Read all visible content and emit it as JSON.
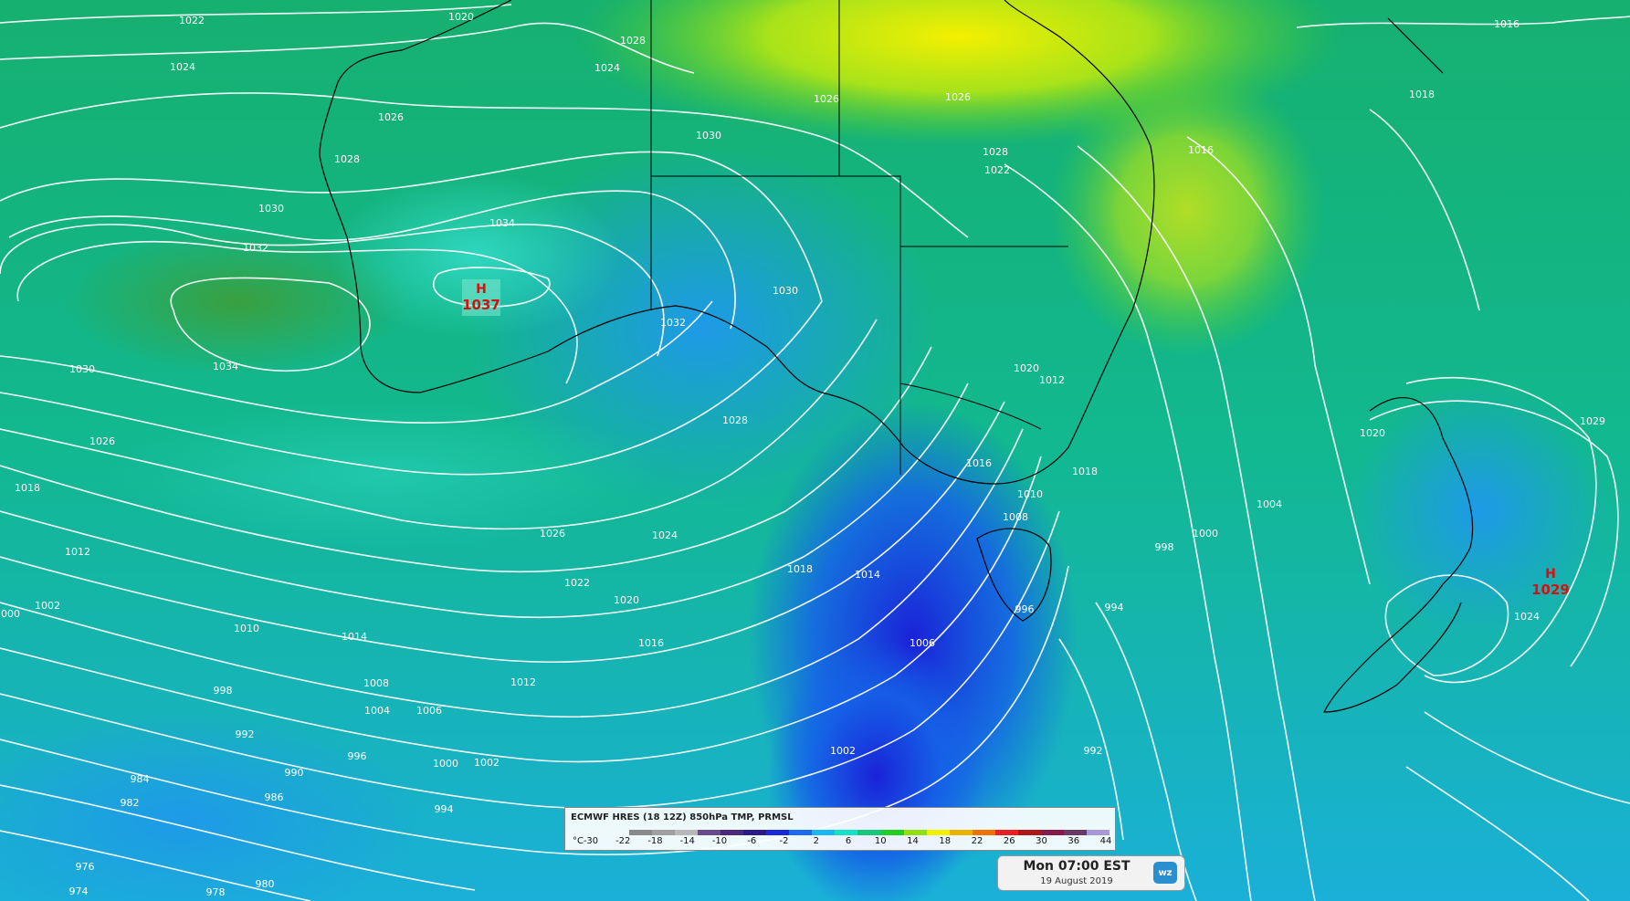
{
  "highs": [
    {
      "label": "H",
      "value": "1037"
    },
    {
      "label": "H",
      "value": "1029"
    }
  ],
  "isobar_labels": [
    "1022",
    "1024",
    "1026",
    "1028",
    "1030",
    "1032",
    "1034",
    "1030",
    "1026",
    "1018",
    "1012",
    "1002",
    "1000",
    "1020",
    "1024",
    "1026",
    "1028",
    "1030",
    "1034",
    "1032",
    "1030",
    "1028",
    "1026",
    "1024",
    "1022",
    "1020",
    "1018",
    "1016",
    "1014",
    "1012",
    "1010",
    "1008",
    "1006",
    "1004",
    "1002",
    "1000",
    "998",
    "996",
    "994",
    "992",
    "990",
    "986",
    "984",
    "982",
    "980",
    "978",
    "976",
    "974",
    "1016",
    "1018",
    "1016",
    "1014",
    "1012",
    "1010",
    "1008",
    "1006",
    "1004",
    "1002",
    "1000",
    "998",
    "996",
    "994",
    "992",
    "1018",
    "1016",
    "1020",
    "1020",
    "1022",
    "1024",
    "1026",
    "1028",
    "1029"
  ],
  "legend": {
    "title": "ECMWF HRES (18 12Z) 850hPa TMP, PRMSL",
    "unit": "°C",
    "ticks": [
      "-30",
      "-22",
      "-18",
      "-14",
      "-10",
      "-6",
      "-2",
      "2",
      "6",
      "10",
      "14",
      "18",
      "22",
      "26",
      "30",
      "36",
      "44"
    ],
    "colors": [
      "#8a8a8a",
      "#a0a0a0",
      "#b8b8b8",
      "#6a4a8a",
      "#4b2a7a",
      "#2a1a8a",
      "#1a2ad8",
      "#1a6af0",
      "#18b8f0",
      "#18e0c8",
      "#18c878",
      "#20d020",
      "#90e010",
      "#f0f000",
      "#f0b000",
      "#f07000",
      "#e82020",
      "#b01818",
      "#8a1a4a",
      "#6a3a6a",
      "#a898d8"
    ]
  },
  "time": {
    "main": "Mon 07:00 EST",
    "date": "19 August 2019",
    "logo": "wz"
  }
}
